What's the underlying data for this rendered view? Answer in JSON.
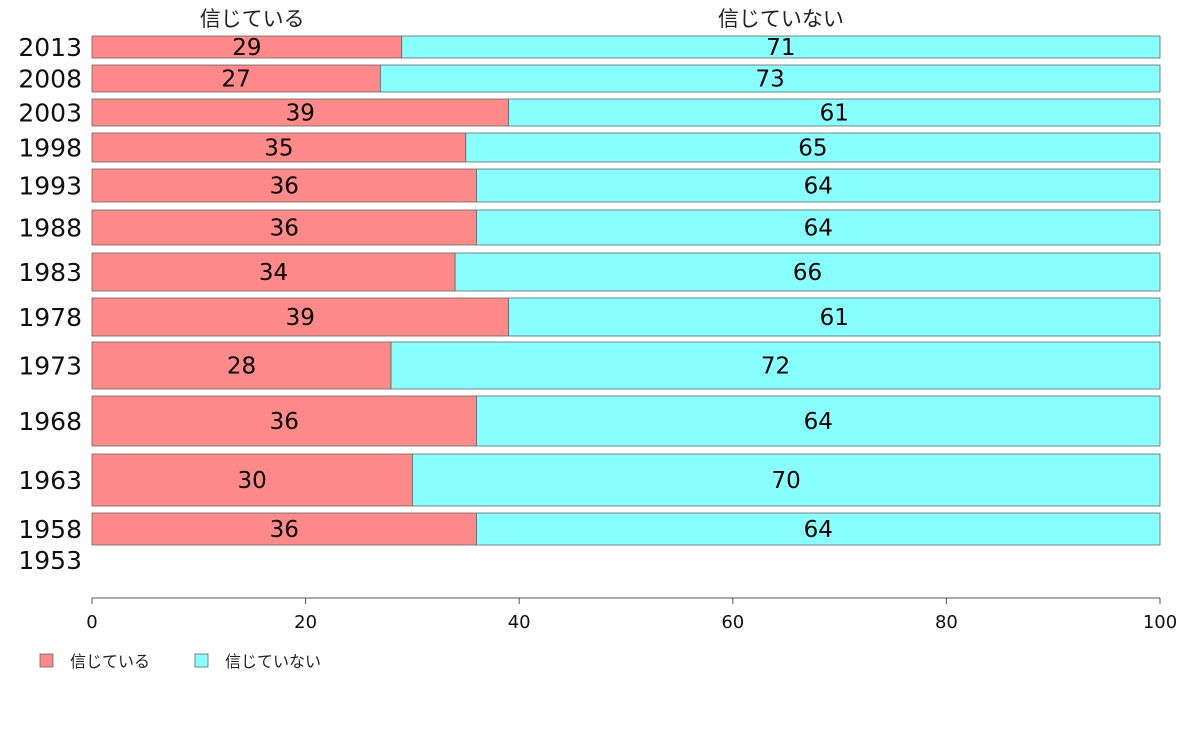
{
  "chart_data": {
    "type": "bar",
    "orientation": "horizontal",
    "stacked": true,
    "categories": [
      "2013",
      "2008",
      "2003",
      "1998",
      "1993",
      "1988",
      "1983",
      "1978",
      "1973",
      "1968",
      "1963",
      "1958",
      "1953"
    ],
    "series": [
      {
        "name": "信じている",
        "color": "#ff8888",
        "values": [
          29,
          27,
          39,
          35,
          36,
          36,
          34,
          39,
          28,
          36,
          30,
          36,
          null
        ]
      },
      {
        "name": "信じていない",
        "color": "#88ffff",
        "values": [
          71,
          73,
          61,
          65,
          64,
          64,
          66,
          61,
          72,
          64,
          70,
          64,
          null
        ]
      }
    ],
    "column_headers": [
      "信じている",
      "信じていない"
    ],
    "xlim": [
      0,
      100
    ],
    "xticks": [
      "0",
      "20",
      "40",
      "60",
      "80",
      "100"
    ],
    "xlabel": "",
    "ylabel": "",
    "title": "",
    "grid": false,
    "legend": {
      "position": "bottom-left",
      "entries": [
        "信じている",
        "信じていない"
      ]
    }
  }
}
